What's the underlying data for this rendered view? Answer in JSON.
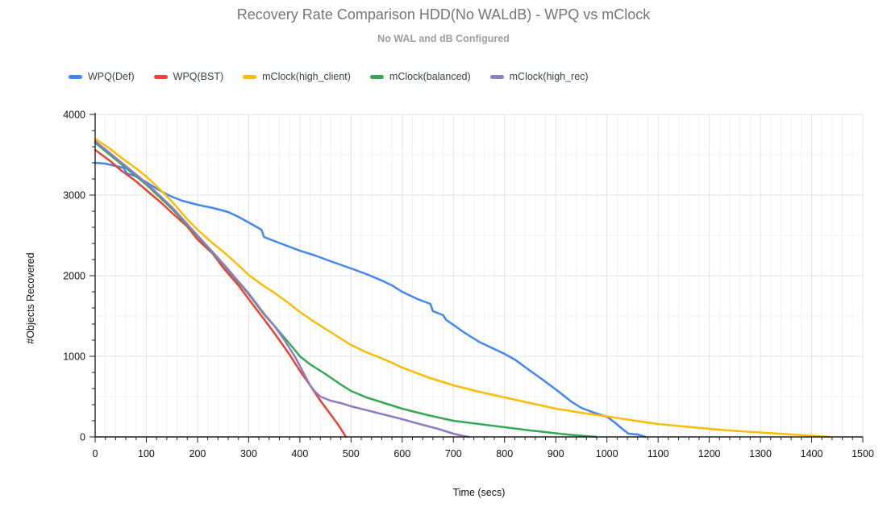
{
  "title": "Recovery Rate Comparison HDD(No WALdB) - WPQ vs mClock",
  "subtitle": "No WAL and dB Configured",
  "colors": {
    "title": "#757575",
    "subtitle": "#9e9e9e",
    "axis": "#212121",
    "grid_major": "#e3e3e3",
    "grid_minor": "#f2f2f2",
    "tick_label": "#111111"
  },
  "chart_data": {
    "type": "line",
    "title": "Recovery Rate Comparison HDD(No WALdB) - WPQ vs mClock",
    "subtitle": "No WAL and dB Configured",
    "xlabel": "Time (secs)",
    "ylabel": "#Objects Recovered",
    "x_range": [
      0,
      1500
    ],
    "y_range": [
      0,
      4000
    ],
    "x_ticks": [
      0,
      100,
      200,
      300,
      400,
      500,
      600,
      700,
      800,
      900,
      1000,
      1100,
      1200,
      1300,
      1400,
      1500
    ],
    "y_ticks": [
      0,
      1000,
      2000,
      3000,
      4000
    ],
    "x_minor_step": 20,
    "y_minor_grid_step": 500,
    "y_minor_tick_step": 200,
    "grid": true,
    "legend_position": "top-left",
    "series": [
      {
        "name": "WPQ(Def)",
        "color": "#4285F4",
        "points": [
          [
            0,
            3400
          ],
          [
            20,
            3390
          ],
          [
            40,
            3360
          ],
          [
            55,
            3340
          ],
          [
            62,
            3270
          ],
          [
            80,
            3230
          ],
          [
            100,
            3160
          ],
          [
            120,
            3080
          ],
          [
            140,
            3010
          ],
          [
            150,
            2980
          ],
          [
            170,
            2930
          ],
          [
            200,
            2880
          ],
          [
            230,
            2840
          ],
          [
            260,
            2790
          ],
          [
            280,
            2730
          ],
          [
            300,
            2660
          ],
          [
            325,
            2570
          ],
          [
            330,
            2480
          ],
          [
            350,
            2430
          ],
          [
            375,
            2370
          ],
          [
            400,
            2310
          ],
          [
            430,
            2250
          ],
          [
            460,
            2180
          ],
          [
            500,
            2090
          ],
          [
            530,
            2020
          ],
          [
            560,
            1940
          ],
          [
            580,
            1880
          ],
          [
            600,
            1800
          ],
          [
            630,
            1710
          ],
          [
            655,
            1650
          ],
          [
            660,
            1560
          ],
          [
            680,
            1510
          ],
          [
            686,
            1450
          ],
          [
            700,
            1390
          ],
          [
            720,
            1300
          ],
          [
            750,
            1180
          ],
          [
            780,
            1090
          ],
          [
            800,
            1030
          ],
          [
            820,
            960
          ],
          [
            850,
            820
          ],
          [
            870,
            730
          ],
          [
            900,
            590
          ],
          [
            930,
            440
          ],
          [
            950,
            360
          ],
          [
            975,
            300
          ],
          [
            1000,
            250
          ],
          [
            1015,
            180
          ],
          [
            1030,
            100
          ],
          [
            1042,
            40
          ],
          [
            1060,
            30
          ],
          [
            1075,
            0
          ]
        ]
      },
      {
        "name": "WPQ(BST)",
        "color": "#EA4335",
        "points": [
          [
            0,
            3560
          ],
          [
            30,
            3420
          ],
          [
            50,
            3310
          ],
          [
            80,
            3170
          ],
          [
            100,
            3060
          ],
          [
            130,
            2900
          ],
          [
            150,
            2780
          ],
          [
            180,
            2610
          ],
          [
            200,
            2450
          ],
          [
            230,
            2270
          ],
          [
            250,
            2100
          ],
          [
            280,
            1880
          ],
          [
            300,
            1710
          ],
          [
            330,
            1460
          ],
          [
            350,
            1290
          ],
          [
            380,
            1020
          ],
          [
            400,
            820
          ],
          [
            420,
            640
          ],
          [
            440,
            450
          ],
          [
            460,
            280
          ],
          [
            475,
            150
          ],
          [
            490,
            0
          ]
        ]
      },
      {
        "name": "mClock(high_client)",
        "color": "#FBBC04",
        "points": [
          [
            0,
            3700
          ],
          [
            30,
            3570
          ],
          [
            50,
            3470
          ],
          [
            80,
            3330
          ],
          [
            100,
            3230
          ],
          [
            130,
            3050
          ],
          [
            150,
            2920
          ],
          [
            180,
            2700
          ],
          [
            200,
            2570
          ],
          [
            230,
            2400
          ],
          [
            250,
            2300
          ],
          [
            280,
            2130
          ],
          [
            300,
            2010
          ],
          [
            330,
            1870
          ],
          [
            350,
            1790
          ],
          [
            380,
            1650
          ],
          [
            400,
            1550
          ],
          [
            430,
            1420
          ],
          [
            450,
            1340
          ],
          [
            480,
            1220
          ],
          [
            500,
            1140
          ],
          [
            530,
            1050
          ],
          [
            550,
            1000
          ],
          [
            580,
            920
          ],
          [
            600,
            860
          ],
          [
            650,
            740
          ],
          [
            700,
            640
          ],
          [
            750,
            560
          ],
          [
            800,
            490
          ],
          [
            850,
            420
          ],
          [
            900,
            350
          ],
          [
            950,
            300
          ],
          [
            1000,
            255
          ],
          [
            1050,
            205
          ],
          [
            1100,
            160
          ],
          [
            1150,
            130
          ],
          [
            1200,
            100
          ],
          [
            1250,
            75
          ],
          [
            1300,
            55
          ],
          [
            1350,
            35
          ],
          [
            1400,
            15
          ],
          [
            1435,
            0
          ]
        ]
      },
      {
        "name": "mClock(balanced)",
        "color": "#34A853",
        "points": [
          [
            0,
            3650
          ],
          [
            50,
            3390
          ],
          [
            100,
            3130
          ],
          [
            150,
            2830
          ],
          [
            200,
            2490
          ],
          [
            250,
            2140
          ],
          [
            300,
            1770
          ],
          [
            330,
            1520
          ],
          [
            350,
            1380
          ],
          [
            370,
            1230
          ],
          [
            390,
            1080
          ],
          [
            400,
            1000
          ],
          [
            420,
            900
          ],
          [
            450,
            780
          ],
          [
            480,
            650
          ],
          [
            500,
            570
          ],
          [
            530,
            490
          ],
          [
            560,
            430
          ],
          [
            600,
            350
          ],
          [
            650,
            270
          ],
          [
            700,
            200
          ],
          [
            750,
            160
          ],
          [
            800,
            120
          ],
          [
            850,
            80
          ],
          [
            880,
            60
          ],
          [
            900,
            45
          ],
          [
            930,
            25
          ],
          [
            960,
            10
          ],
          [
            980,
            0
          ]
        ]
      },
      {
        "name": "mClock(high_rec)",
        "color": "#8E7CC3",
        "points": [
          [
            0,
            3670
          ],
          [
            50,
            3410
          ],
          [
            100,
            3150
          ],
          [
            150,
            2850
          ],
          [
            200,
            2500
          ],
          [
            250,
            2150
          ],
          [
            300,
            1780
          ],
          [
            330,
            1530
          ],
          [
            350,
            1380
          ],
          [
            370,
            1200
          ],
          [
            390,
            1000
          ],
          [
            400,
            880
          ],
          [
            410,
            760
          ],
          [
            420,
            640
          ],
          [
            430,
            560
          ],
          [
            440,
            500
          ],
          [
            460,
            450
          ],
          [
            480,
            420
          ],
          [
            500,
            380
          ],
          [
            550,
            300
          ],
          [
            600,
            220
          ],
          [
            640,
            150
          ],
          [
            670,
            100
          ],
          [
            700,
            40
          ],
          [
            720,
            10
          ],
          [
            730,
            0
          ]
        ]
      }
    ]
  }
}
